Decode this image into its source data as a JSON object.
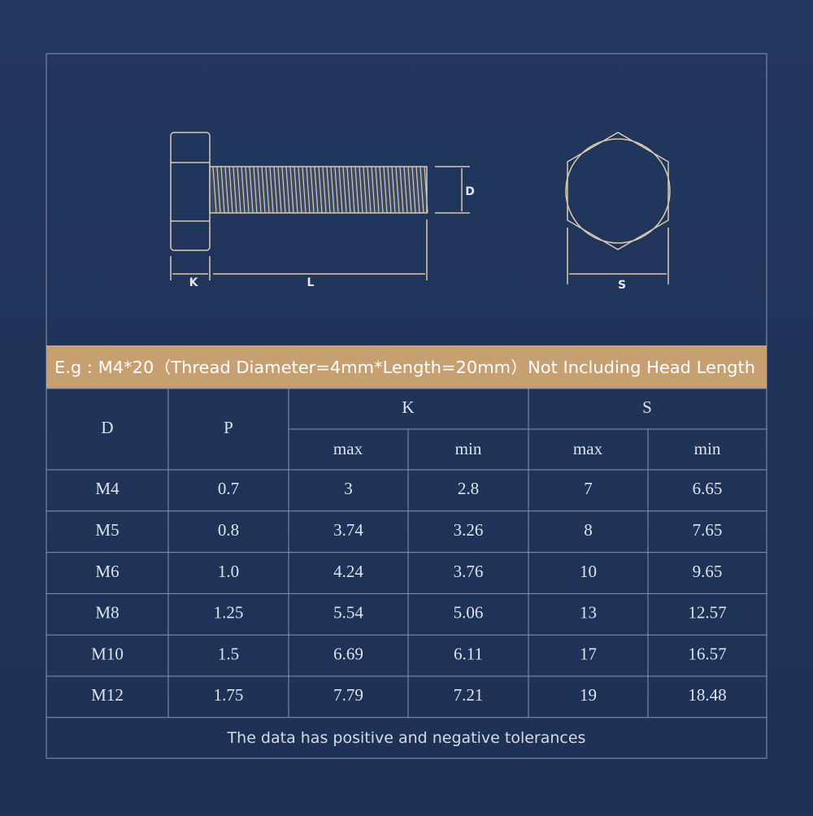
{
  "diagram": {
    "k_label": "K",
    "l_label": "L",
    "d_label": "D",
    "s_label": "S"
  },
  "banner": "E.g : M4*20（Thread Diameter=4mm*Length=20mm）Not Including Head Length",
  "table": {
    "header": [
      "D",
      "P",
      "K",
      "S"
    ],
    "subheader": [
      "max",
      "min",
      "max",
      "min"
    ],
    "rows": [
      [
        "M4",
        "0.7",
        "3",
        "2.8",
        "7",
        "6.65"
      ],
      [
        "M5",
        "0.8",
        "3.74",
        "3.26",
        "8",
        "7.65"
      ],
      [
        "M6",
        "1.0",
        "4.24",
        "3.76",
        "10",
        "9.65"
      ],
      [
        "M8",
        "1.25",
        "5.54",
        "5.06",
        "13",
        "12.57"
      ],
      [
        "M10",
        "1.5",
        "6.69",
        "6.11",
        "17",
        "16.57"
      ],
      [
        "M12",
        "1.75",
        "7.79",
        "7.21",
        "19",
        "18.48"
      ]
    ]
  },
  "footer": "The data has positive and negative tolerances"
}
